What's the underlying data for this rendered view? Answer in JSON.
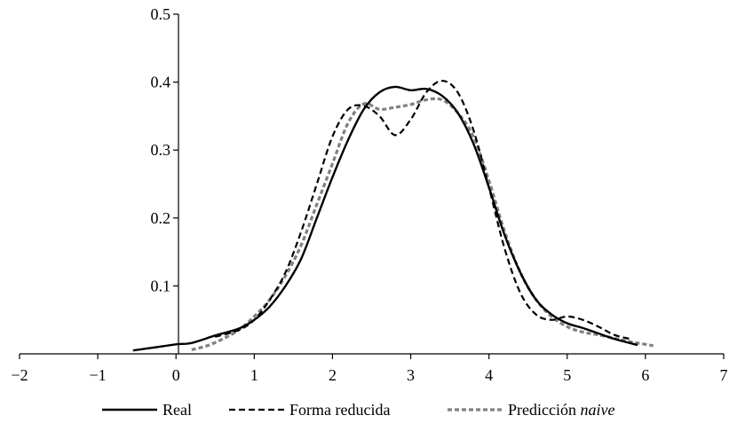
{
  "chart_data": {
    "type": "line",
    "title": "",
    "xlabel": "",
    "ylabel": "",
    "xlim": [
      -2,
      7
    ],
    "ylim": [
      0,
      0.5
    ],
    "xticks": [
      -2,
      -1,
      0,
      1,
      2,
      3,
      4,
      5,
      6,
      7
    ],
    "xtick_labels": [
      "−2",
      "−1",
      "0",
      "1",
      "2",
      "3",
      "4",
      "5",
      "6",
      "7"
    ],
    "yticks": [
      0.1,
      0.2,
      0.3,
      0.4,
      0.5
    ],
    "ytick_labels": [
      "0.1",
      "0.2",
      "0.3",
      "0.4",
      "0.5"
    ],
    "grid": false,
    "legend_position": "bottom",
    "series": [
      {
        "name": "Real",
        "color": "#000000",
        "style": "solid",
        "x": [
          -0.55,
          -0.3,
          0.0,
          0.2,
          0.5,
          0.8,
          1.0,
          1.2,
          1.4,
          1.6,
          1.8,
          2.0,
          2.2,
          2.4,
          2.6,
          2.8,
          3.0,
          3.2,
          3.4,
          3.6,
          3.8,
          4.0,
          4.2,
          4.4,
          4.6,
          4.8,
          5.0,
          5.2,
          5.4,
          5.6,
          5.9
        ],
        "y": [
          0.005,
          0.009,
          0.014,
          0.016,
          0.027,
          0.037,
          0.05,
          0.07,
          0.1,
          0.14,
          0.2,
          0.26,
          0.315,
          0.36,
          0.385,
          0.393,
          0.388,
          0.39,
          0.38,
          0.355,
          0.31,
          0.245,
          0.175,
          0.12,
          0.08,
          0.058,
          0.045,
          0.038,
          0.03,
          0.022,
          0.013
        ]
      },
      {
        "name": "Forma reducida",
        "color": "#000000",
        "style": "dashed",
        "x": [
          0.5,
          0.8,
          1.0,
          1.2,
          1.4,
          1.6,
          1.8,
          2.0,
          2.2,
          2.4,
          2.6,
          2.8,
          3.0,
          3.2,
          3.4,
          3.6,
          3.8,
          4.0,
          4.2,
          4.4,
          4.6,
          4.8,
          5.0,
          5.2,
          5.4,
          5.6,
          5.8
        ],
        "y": [
          0.025,
          0.035,
          0.05,
          0.08,
          0.12,
          0.18,
          0.25,
          0.32,
          0.36,
          0.365,
          0.35,
          0.322,
          0.345,
          0.385,
          0.402,
          0.385,
          0.33,
          0.245,
          0.155,
          0.09,
          0.058,
          0.05,
          0.055,
          0.05,
          0.04,
          0.028,
          0.022
        ]
      },
      {
        "name": "Predicción naive",
        "color": "#808080",
        "style": "dashed",
        "x": [
          0.2,
          0.4,
          0.6,
          0.8,
          1.0,
          1.2,
          1.4,
          1.6,
          1.8,
          2.0,
          2.2,
          2.4,
          2.6,
          2.8,
          3.0,
          3.2,
          3.4,
          3.6,
          3.8,
          4.0,
          4.2,
          4.4,
          4.6,
          4.8,
          5.0,
          5.2,
          5.4,
          5.6,
          5.8,
          6.1
        ],
        "y": [
          0.006,
          0.012,
          0.022,
          0.035,
          0.055,
          0.08,
          0.115,
          0.16,
          0.22,
          0.28,
          0.34,
          0.368,
          0.36,
          0.363,
          0.367,
          0.374,
          0.374,
          0.355,
          0.32,
          0.255,
          0.18,
          0.12,
          0.08,
          0.055,
          0.04,
          0.032,
          0.028,
          0.023,
          0.018,
          0.012
        ]
      }
    ],
    "legend": {
      "items": [
        {
          "label": "Real",
          "italic_suffix": ""
        },
        {
          "label": "Forma reducida",
          "italic_suffix": ""
        },
        {
          "label": "Predicción ",
          "italic_suffix": "naive"
        }
      ]
    }
  }
}
